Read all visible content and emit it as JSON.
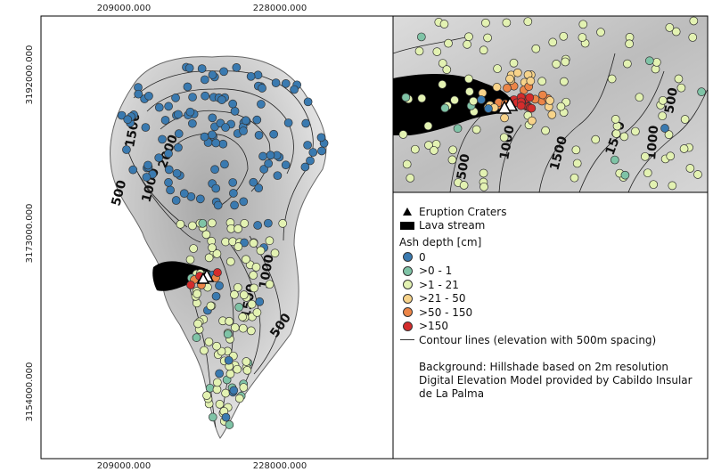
{
  "map": {
    "x_ticks": [
      "209000.000",
      "228000.000"
    ],
    "y_ticks": [
      "3192000.000",
      "3173000.000",
      "3154000.000"
    ],
    "contour_labels_main": [
      "1500",
      "2000",
      "1000",
      "500",
      "1000",
      "1500",
      "500"
    ],
    "contour_labels_inset": [
      "500",
      "1000",
      "1500",
      "1500",
      "1000",
      "500"
    ]
  },
  "legend": {
    "craters_label": "Eruption Craters",
    "lava_label": "Lava stream",
    "ash_title": "Ash depth [cm]",
    "ash_classes": [
      {
        "label": "0",
        "color": "#3a7ab0"
      },
      {
        "label": ">0 - 1",
        "color": "#7fc3a6"
      },
      {
        "label": ">1 - 21",
        "color": "#e3f2b2"
      },
      {
        "label": ">21 - 50",
        "color": "#f7d38a"
      },
      {
        "label": ">50 - 150",
        "color": "#ec8547"
      },
      {
        "label": ">150",
        "color": "#d42c2c"
      }
    ],
    "contour_label": "Contour lines (elevation with 500m spacing)",
    "background_note": "Background: Hillshade based on 2m resolution Digital Elevation Model provided by Cabildo Insular de La Palma"
  }
}
